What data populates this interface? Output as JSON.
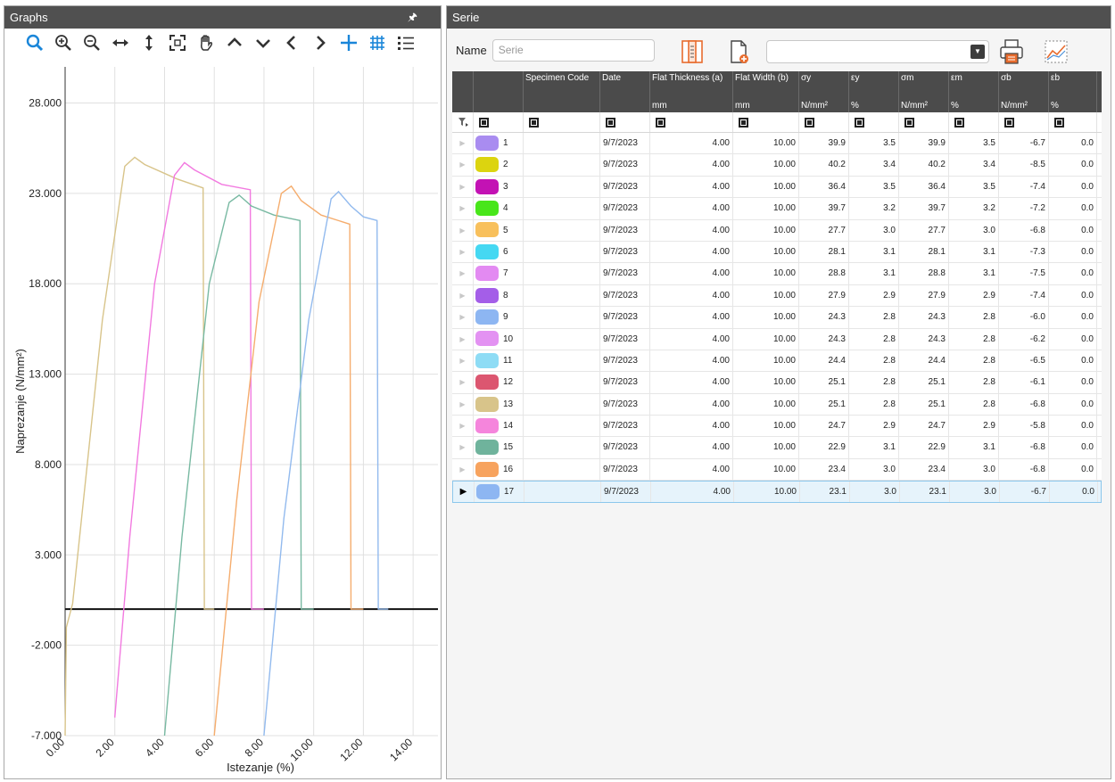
{
  "graphs": {
    "title": "Graphs",
    "pin_icon": "pin-icon",
    "toolbar": [
      {
        "name": "zoom-search-icon",
        "color": "#1a86d9"
      },
      {
        "name": "zoom-in-icon",
        "color": "#333333"
      },
      {
        "name": "zoom-out-icon",
        "color": "#333333"
      },
      {
        "name": "horizontal-arrows-icon",
        "color": "#333333"
      },
      {
        "name": "vertical-arrows-icon",
        "color": "#333333"
      },
      {
        "name": "fit-screen-icon",
        "color": "#333333"
      },
      {
        "name": "pan-hand-icon",
        "color": "#333333"
      },
      {
        "name": "chevron-up-icon",
        "color": "#333333"
      },
      {
        "name": "chevron-down-icon",
        "color": "#333333"
      },
      {
        "name": "chevron-left-icon",
        "color": "#333333"
      },
      {
        "name": "chevron-right-icon",
        "color": "#333333"
      },
      {
        "name": "crosshair-plus-icon",
        "color": "#1a86d9"
      },
      {
        "name": "grid-icon",
        "color": "#1a86d9"
      },
      {
        "name": "legend-list-icon",
        "color": "#333333"
      }
    ]
  },
  "chart_data": {
    "type": "line",
    "xlabel": "Istezanje (%)",
    "ylabel": "Naprezanje (N/mm²)",
    "xlim": [
      0,
      15
    ],
    "ylim": [
      -7,
      30
    ],
    "x_ticks": [
      "0.00",
      "2.00",
      "4.00",
      "6.00",
      "8.00",
      "10.00",
      "12.00",
      "14.00"
    ],
    "y_ticks": [
      "28.000",
      "23.000",
      "18.000",
      "13.000",
      "8.000",
      "3.000",
      "-2.000",
      "-7.000"
    ],
    "y_tick_values": [
      28,
      23,
      18,
      13,
      8,
      3,
      -2,
      -7
    ],
    "x_tick_values": [
      0,
      2,
      4,
      6,
      8,
      10,
      12,
      14
    ],
    "grid": true,
    "series": [
      {
        "color": "#d8c48a",
        "points": [
          [
            0.0,
            -7
          ],
          [
            0.05,
            -1
          ],
          [
            0.3,
            0.3
          ],
          [
            1.5,
            16
          ],
          [
            2.4,
            24.5
          ],
          [
            2.8,
            25.0
          ],
          [
            3.2,
            24.6
          ],
          [
            4.5,
            23.8
          ],
          [
            5.55,
            23.3
          ],
          [
            5.6,
            0.0
          ],
          [
            6.0,
            0.0
          ]
        ]
      },
      {
        "color": "#f27ae0",
        "points": [
          [
            2.0,
            -6
          ],
          [
            2.6,
            4
          ],
          [
            3.6,
            18
          ],
          [
            4.4,
            24.0
          ],
          [
            4.8,
            24.7
          ],
          [
            5.2,
            24.3
          ],
          [
            6.3,
            23.5
          ],
          [
            7.45,
            23.2
          ],
          [
            7.5,
            0.0
          ],
          [
            8.0,
            0.0
          ]
        ]
      },
      {
        "color": "#78b9a2",
        "points": [
          [
            4.0,
            -7
          ],
          [
            4.7,
            4
          ],
          [
            5.8,
            18
          ],
          [
            6.6,
            22.5
          ],
          [
            7.0,
            22.9
          ],
          [
            7.5,
            22.3
          ],
          [
            8.4,
            21.8
          ],
          [
            9.45,
            21.5
          ],
          [
            9.5,
            0.0
          ],
          [
            10.0,
            0.0
          ]
        ]
      },
      {
        "color": "#f5ad6e",
        "points": [
          [
            6.0,
            -7
          ],
          [
            6.9,
            6
          ],
          [
            7.8,
            17
          ],
          [
            8.7,
            23.0
          ],
          [
            9.1,
            23.4
          ],
          [
            9.5,
            22.6
          ],
          [
            10.3,
            21.8
          ],
          [
            11.45,
            21.3
          ],
          [
            11.5,
            0.0
          ],
          [
            12.0,
            0.0
          ]
        ]
      },
      {
        "color": "#92baee",
        "points": [
          [
            8.0,
            -7
          ],
          [
            8.8,
            5
          ],
          [
            9.8,
            16
          ],
          [
            10.7,
            22.7
          ],
          [
            11.0,
            23.1
          ],
          [
            11.5,
            22.3
          ],
          [
            12.0,
            21.7
          ],
          [
            12.55,
            21.5
          ],
          [
            12.6,
            0.0
          ],
          [
            13.0,
            0.0
          ]
        ]
      }
    ]
  },
  "serie": {
    "title": "Serie",
    "name_label": "Name",
    "name_placeholder": "Serie",
    "toolbar_icons": [
      "columns-layout-icon",
      "new-document-icon",
      "dropdown-combo",
      "printer-icon",
      "chart-report-icon"
    ],
    "filter_icon": "filter-icon",
    "columns": [
      {
        "label": "",
        "unit": ""
      },
      {
        "label": "",
        "unit": ""
      },
      {
        "label": "Specimen Code",
        "unit": ""
      },
      {
        "label": "Date",
        "unit": ""
      },
      {
        "label": "Flat Thickness (a)",
        "unit": "mm"
      },
      {
        "label": "Flat Width (b)",
        "unit": "mm"
      },
      {
        "label": "σy",
        "unit": "N/mm²"
      },
      {
        "label": "εy",
        "unit": "%"
      },
      {
        "label": "σm",
        "unit": "N/mm²"
      },
      {
        "label": "εm",
        "unit": "%"
      },
      {
        "label": "σb",
        "unit": "N/mm²"
      },
      {
        "label": "εb",
        "unit": "%"
      }
    ],
    "rows": [
      {
        "num": "1",
        "color": "#a98cf0",
        "code": "",
        "date": "9/7/2023",
        "a": "4.00",
        "b": "10.00",
        "sy": "39.9",
        "ey": "3.5",
        "sm": "39.9",
        "em": "3.5",
        "sb": "-6.7",
        "eb": "0.0"
      },
      {
        "num": "2",
        "color": "#dcd40f",
        "code": "",
        "date": "9/7/2023",
        "a": "4.00",
        "b": "10.00",
        "sy": "40.2",
        "ey": "3.4",
        "sm": "40.2",
        "em": "3.4",
        "sb": "-8.5",
        "eb": "0.0"
      },
      {
        "num": "3",
        "color": "#c312b4",
        "code": "",
        "date": "9/7/2023",
        "a": "4.00",
        "b": "10.00",
        "sy": "36.4",
        "ey": "3.5",
        "sm": "36.4",
        "em": "3.5",
        "sb": "-7.4",
        "eb": "0.0"
      },
      {
        "num": "4",
        "color": "#48e61a",
        "code": "",
        "date": "9/7/2023",
        "a": "4.00",
        "b": "10.00",
        "sy": "39.7",
        "ey": "3.2",
        "sm": "39.7",
        "em": "3.2",
        "sb": "-7.2",
        "eb": "0.0"
      },
      {
        "num": "5",
        "color": "#f8c05c",
        "code": "",
        "date": "9/7/2023",
        "a": "4.00",
        "b": "10.00",
        "sy": "27.7",
        "ey": "3.0",
        "sm": "27.7",
        "em": "3.0",
        "sb": "-6.8",
        "eb": "0.0"
      },
      {
        "num": "6",
        "color": "#45d8f2",
        "code": "",
        "date": "9/7/2023",
        "a": "4.00",
        "b": "10.00",
        "sy": "28.1",
        "ey": "3.1",
        "sm": "28.1",
        "em": "3.1",
        "sb": "-7.3",
        "eb": "0.0"
      },
      {
        "num": "7",
        "color": "#e38af2",
        "code": "",
        "date": "9/7/2023",
        "a": "4.00",
        "b": "10.00",
        "sy": "28.8",
        "ey": "3.1",
        "sm": "28.8",
        "em": "3.1",
        "sb": "-7.5",
        "eb": "0.0"
      },
      {
        "num": "8",
        "color": "#a45ee8",
        "code": "",
        "date": "9/7/2023",
        "a": "4.00",
        "b": "10.00",
        "sy": "27.9",
        "ey": "2.9",
        "sm": "27.9",
        "em": "2.9",
        "sb": "-7.4",
        "eb": "0.0"
      },
      {
        "num": "9",
        "color": "#8db6f2",
        "code": "",
        "date": "9/7/2023",
        "a": "4.00",
        "b": "10.00",
        "sy": "24.3",
        "ey": "2.8",
        "sm": "24.3",
        "em": "2.8",
        "sb": "-6.0",
        "eb": "0.0"
      },
      {
        "num": "10",
        "color": "#e392f2",
        "code": "",
        "date": "9/7/2023",
        "a": "4.00",
        "b": "10.00",
        "sy": "24.3",
        "ey": "2.8",
        "sm": "24.3",
        "em": "2.8",
        "sb": "-6.2",
        "eb": "0.0"
      },
      {
        "num": "11",
        "color": "#8edcf5",
        "code": "",
        "date": "9/7/2023",
        "a": "4.00",
        "b": "10.00",
        "sy": "24.4",
        "ey": "2.8",
        "sm": "24.4",
        "em": "2.8",
        "sb": "-6.5",
        "eb": "0.0"
      },
      {
        "num": "12",
        "color": "#dc5670",
        "code": "",
        "date": "9/7/2023",
        "a": "4.00",
        "b": "10.00",
        "sy": "25.1",
        "ey": "2.8",
        "sm": "25.1",
        "em": "2.8",
        "sb": "-6.1",
        "eb": "0.0"
      },
      {
        "num": "13",
        "color": "#d8c48a",
        "code": "",
        "date": "9/7/2023",
        "a": "4.00",
        "b": "10.00",
        "sy": "25.1",
        "ey": "2.8",
        "sm": "25.1",
        "em": "2.8",
        "sb": "-6.8",
        "eb": "0.0"
      },
      {
        "num": "14",
        "color": "#f585dc",
        "code": "",
        "date": "9/7/2023",
        "a": "4.00",
        "b": "10.00",
        "sy": "24.7",
        "ey": "2.9",
        "sm": "24.7",
        "em": "2.9",
        "sb": "-5.8",
        "eb": "0.0"
      },
      {
        "num": "15",
        "color": "#6fb39c",
        "code": "",
        "date": "9/7/2023",
        "a": "4.00",
        "b": "10.00",
        "sy": "22.9",
        "ey": "3.1",
        "sm": "22.9",
        "em": "3.1",
        "sb": "-6.8",
        "eb": "0.0"
      },
      {
        "num": "16",
        "color": "#f7a35e",
        "code": "",
        "date": "9/7/2023",
        "a": "4.00",
        "b": "10.00",
        "sy": "23.4",
        "ey": "3.0",
        "sm": "23.4",
        "em": "3.0",
        "sb": "-6.8",
        "eb": "0.0"
      },
      {
        "num": "17",
        "color": "#8db6f2",
        "code": "",
        "date": "9/7/2023",
        "a": "4.00",
        "b": "10.00",
        "sy": "23.1",
        "ey": "3.0",
        "sm": "23.1",
        "em": "3.0",
        "sb": "-6.7",
        "eb": "0.0",
        "selected": true
      }
    ]
  }
}
